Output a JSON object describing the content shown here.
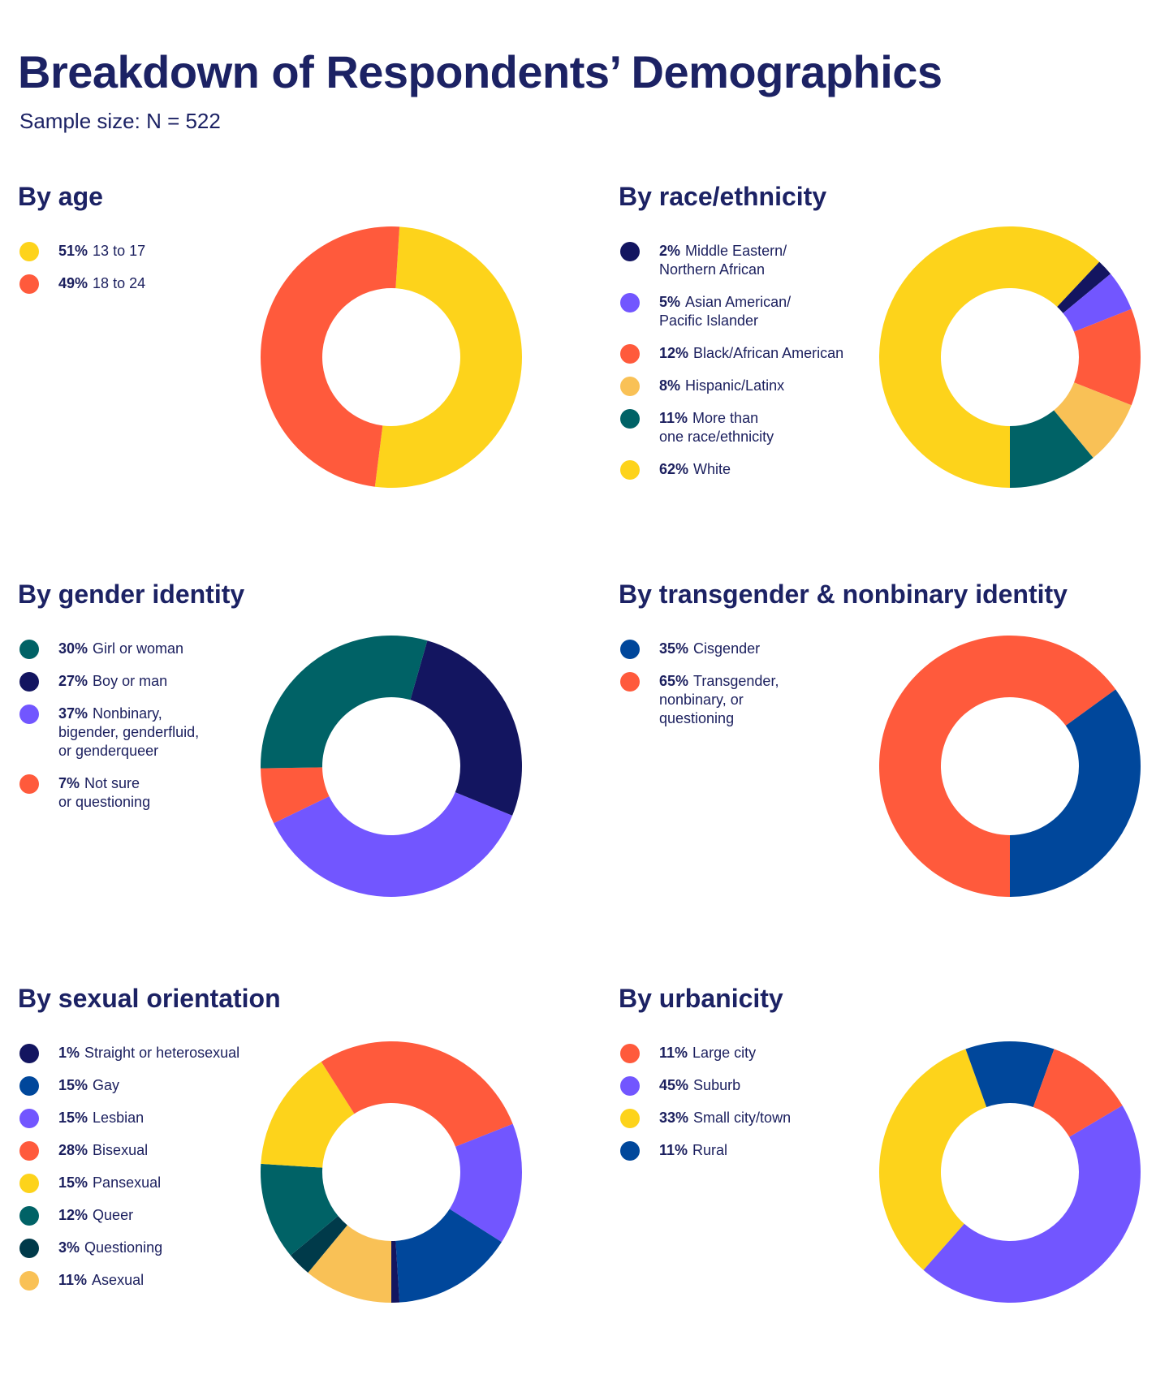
{
  "title": "Breakdown of Respondents’ Demographics",
  "subtitle": "Sample size: N = 522",
  "chart_data": [
    {
      "type": "pie",
      "title": "By age",
      "categories": [
        "13 to 17",
        "18 to 24"
      ],
      "values": [
        51,
        49
      ],
      "colors": [
        "#FDD31B",
        "#FF5A3C"
      ]
    },
    {
      "type": "pie",
      "title": "By race/ethnicity",
      "categories": [
        "Middle Eastern/\nNorthern African",
        "Asian American/\nPacific Islander",
        "Black/African American",
        "Hispanic/Latinx",
        "More than\none race/ethnicity",
        "White"
      ],
      "values": [
        2,
        5,
        12,
        8,
        11,
        62
      ],
      "colors": [
        "#131560",
        "#7256FF",
        "#FF5A3C",
        "#F9C156",
        "#006266",
        "#FDD31B"
      ]
    },
    {
      "type": "pie",
      "title": "By gender identity",
      "categories": [
        "Girl or woman",
        "Boy or man",
        "Nonbinary,\nbigender, genderfluid,\nor genderqueer",
        "Not sure\nor questioning"
      ],
      "values": [
        30,
        27,
        37,
        7
      ],
      "colors": [
        "#006266",
        "#131560",
        "#7256FF",
        "#FF5A3C"
      ]
    },
    {
      "type": "pie",
      "title": "By transgender & nonbinary identity",
      "categories": [
        "Cisgender",
        "Transgender,\nnonbinary, or\nquestioning"
      ],
      "values": [
        35,
        65
      ],
      "colors": [
        "#00479B",
        "#FF5A3C"
      ]
    },
    {
      "type": "pie",
      "title": "By sexual orientation",
      "categories": [
        "Straight or heterosexual",
        "Gay",
        "Lesbian",
        "Bisexual",
        "Pansexual",
        "Queer",
        "Questioning",
        "Asexual"
      ],
      "values": [
        1,
        15,
        15,
        28,
        15,
        12,
        3,
        11
      ],
      "colors": [
        "#131560",
        "#00479B",
        "#7256FF",
        "#FF5A3C",
        "#FDD31B",
        "#006266",
        "#003A4A",
        "#F9C156"
      ]
    },
    {
      "type": "pie",
      "title": "By urbanicity",
      "categories": [
        "Large city",
        "Suburb",
        "Small city/town",
        "Rural"
      ],
      "values": [
        11,
        45,
        33,
        11
      ],
      "colors": [
        "#FF5A3C",
        "#7256FF",
        "#FDD31B",
        "#00479B"
      ]
    }
  ]
}
